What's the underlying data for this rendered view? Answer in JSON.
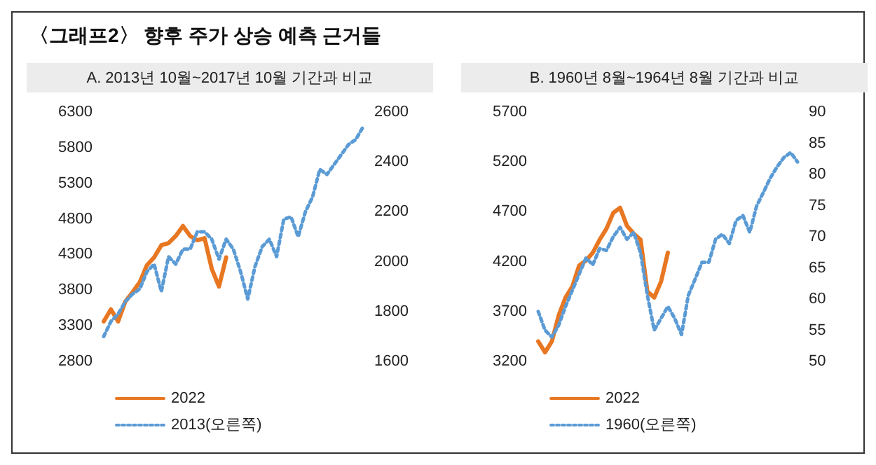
{
  "chart_data": [
    {
      "type": "line",
      "title": "〈그래프2〉 향후 주가 상승 예측 근거들",
      "subtitle": "A. 2013년 10월~2017년 10월 기간과 비교",
      "categories": [
        null,
        null,
        null,
        null,
        null,
        null,
        null,
        null,
        null,
        null,
        null,
        null,
        null,
        null,
        null,
        null,
        null,
        null,
        null,
        null,
        null,
        null,
        null,
        null,
        null,
        null,
        null,
        null,
        null,
        null,
        null,
        null,
        null,
        null,
        null,
        null,
        null
      ],
      "series": [
        {
          "name": "2022",
          "color": "#e87722",
          "line_style": "solid",
          "values": [
            3360,
            3530,
            3360,
            3640,
            3770,
            3910,
            4150,
            4260,
            4430,
            4460,
            4560,
            4700,
            4560,
            4500,
            4530,
            4100,
            3850,
            4260,
            null,
            null,
            null,
            null,
            null,
            null,
            null,
            null,
            null,
            null,
            null,
            null,
            null,
            null,
            null,
            null,
            null,
            null,
            null
          ]
        },
        {
          "name": "2013(오른쪽)",
          "color": "#5b9bd5",
          "line_style": "dotted",
          "axis": "y2",
          "values": [
            1700,
            1760,
            1790,
            1840,
            1870,
            1890,
            1960,
            1990,
            1880,
            2020,
            1990,
            2050,
            2050,
            2120,
            2120,
            2090,
            2010,
            2090,
            2050,
            1960,
            1850,
            1980,
            2060,
            2090,
            2020,
            2170,
            2180,
            2100,
            2200,
            2260,
            2370,
            2350,
            2390,
            2430,
            2470,
            2490,
            2540
          ]
        }
      ],
      "ylim": [
        2800,
        6300
      ],
      "yticks": [
        2800,
        3300,
        3800,
        4300,
        4800,
        5300,
        5800,
        6300
      ],
      "y2lim": [
        1600,
        2600
      ],
      "y2ticks": [
        1600,
        1800,
        2000,
        2200,
        2400,
        2600
      ],
      "tick_labels": "y",
      "grid": false,
      "legend": "bottom"
    },
    {
      "type": "line",
      "subtitle": "B. 1960년 8월~1964년 8월 기간과 비교",
      "categories": [
        null,
        null,
        null,
        null,
        null,
        null,
        null,
        null,
        null,
        null,
        null,
        null,
        null,
        null,
        null,
        null,
        null,
        null,
        null,
        null,
        null,
        null,
        null,
        null,
        null,
        null,
        null,
        null,
        null,
        null,
        null,
        null,
        null,
        null,
        null,
        null,
        null,
        null,
        null
      ],
      "series": [
        {
          "name": "2022",
          "color": "#e87722",
          "line_style": "solid",
          "values": [
            3400,
            3290,
            3400,
            3660,
            3840,
            3950,
            4160,
            4210,
            4290,
            4420,
            4530,
            4690,
            4740,
            4560,
            4480,
            4420,
            3900,
            3840,
            4000,
            4290,
            null,
            null,
            null,
            null,
            null,
            null,
            null,
            null,
            null,
            null,
            null,
            null,
            null,
            null,
            null,
            null,
            null,
            null,
            null
          ]
        },
        {
          "name": "1960(오른쪽)",
          "color": "#5b9bd5",
          "line_style": "dotted",
          "axis": "y2",
          "values": [
            58,
            55,
            53.9,
            55.8,
            58.8,
            61.4,
            64,
            66.6,
            65.5,
            68.1,
            67.8,
            70,
            71.5,
            69.6,
            70.7,
            67.4,
            60.6,
            55,
            56.9,
            58.8,
            56.9,
            54.3,
            60.6,
            63.2,
            65.9,
            65.9,
            69.6,
            70.4,
            68.9,
            72.6,
            73.4,
            70.7,
            74.9,
            77.1,
            79.4,
            81.2,
            82.7,
            83.5,
            82
          ]
        }
      ],
      "ylim": [
        3200,
        5700
      ],
      "yticks": [
        3200,
        3700,
        4200,
        4700,
        5200,
        5700
      ],
      "y2lim": [
        50,
        90
      ],
      "y2ticks": [
        50,
        55,
        60,
        65,
        70,
        75,
        80,
        85,
        90
      ],
      "tick_labels": "y",
      "grid": false,
      "legend": "bottom"
    }
  ]
}
